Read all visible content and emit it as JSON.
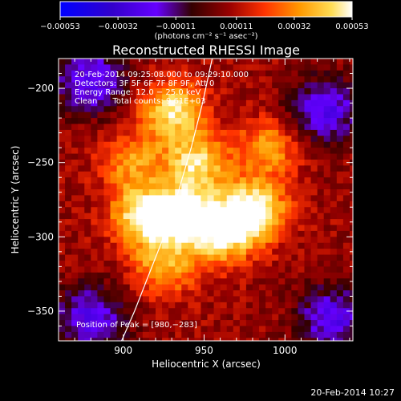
{
  "chart_data": {
    "type": "heatmap",
    "title": "Reconstructed RHESSI Image",
    "xlabel": "Heliocentric X (arcsec)",
    "ylabel": "Heliocentric Y (arcsec)",
    "xlim": [
      860,
      1042
    ],
    "ylim": [
      -370,
      -180
    ],
    "x_ticks": [
      900,
      950,
      1000
    ],
    "x_tick_labels": [
      "900",
      "950",
      "1000"
    ],
    "y_ticks": [
      -200,
      -250,
      -300,
      -350
    ],
    "y_tick_labels": [
      "−200",
      "−250",
      "−300",
      "−350"
    ],
    "colorbar": {
      "range": [
        -0.00053,
        0.00053
      ],
      "tick_values": [
        -0.00053,
        -0.00032,
        -0.00011,
        0.00011,
        0.00032,
        0.00053
      ],
      "tick_labels": [
        "−0.00053",
        "−0.00032",
        "−0.00011",
        "0.00011",
        "0.00032",
        "0.00053"
      ],
      "units_label": "(photons cm⁻² s⁻¹ asec⁻²)",
      "colors": [
        "#0000ff",
        "#3300cc",
        "#6600ff",
        "#330000",
        "#990000",
        "#ff3300",
        "#ff9900",
        "#ffdd55",
        "#ffffff"
      ]
    },
    "annotations": [
      "20-Feb-2014 09:25:08.000 to 09:29:10.000",
      "Detectors: 3F 5F 6F 7F 8F 9F, Att 0",
      "Energy Range: 12.0 − 25.0 keV",
      "Clean      Total counts: 9.61E+03"
    ],
    "peak_label": "Position of Peak = [980,−283]",
    "peak_position": [
      980,
      -283
    ],
    "sources": [
      {
        "x": 980,
        "y": -283,
        "intensity": 1.0
      },
      {
        "x": 913,
        "y": -286,
        "intensity": 0.85
      },
      {
        "x": 940,
        "y": -285,
        "intensity": 0.8
      },
      {
        "x": 930,
        "y": -215,
        "intensity": 0.75
      },
      {
        "x": 945,
        "y": -250,
        "intensity": 0.7
      },
      {
        "x": 960,
        "y": -300,
        "intensity": 0.65
      },
      {
        "x": 925,
        "y": -320,
        "intensity": 0.55
      },
      {
        "x": 990,
        "y": -240,
        "intensity": 0.5
      },
      {
        "x": 905,
        "y": -250,
        "intensity": 0.45
      }
    ],
    "negative_regions": [
      {
        "x": 880,
        "y": -355
      },
      {
        "x": 1030,
        "y": -355
      },
      {
        "x": 1025,
        "y": -215
      },
      {
        "x": 880,
        "y": -195
      }
    ],
    "limb_curve": [
      [
        899,
        -370
      ],
      [
        907,
        -350
      ],
      [
        916,
        -325
      ],
      [
        925,
        -300
      ],
      [
        934,
        -270
      ],
      [
        942,
        -240
      ],
      [
        949,
        -210
      ],
      [
        955,
        -180
      ]
    ]
  },
  "footer": {
    "timestamp": "20-Feb-2014 10:27"
  }
}
